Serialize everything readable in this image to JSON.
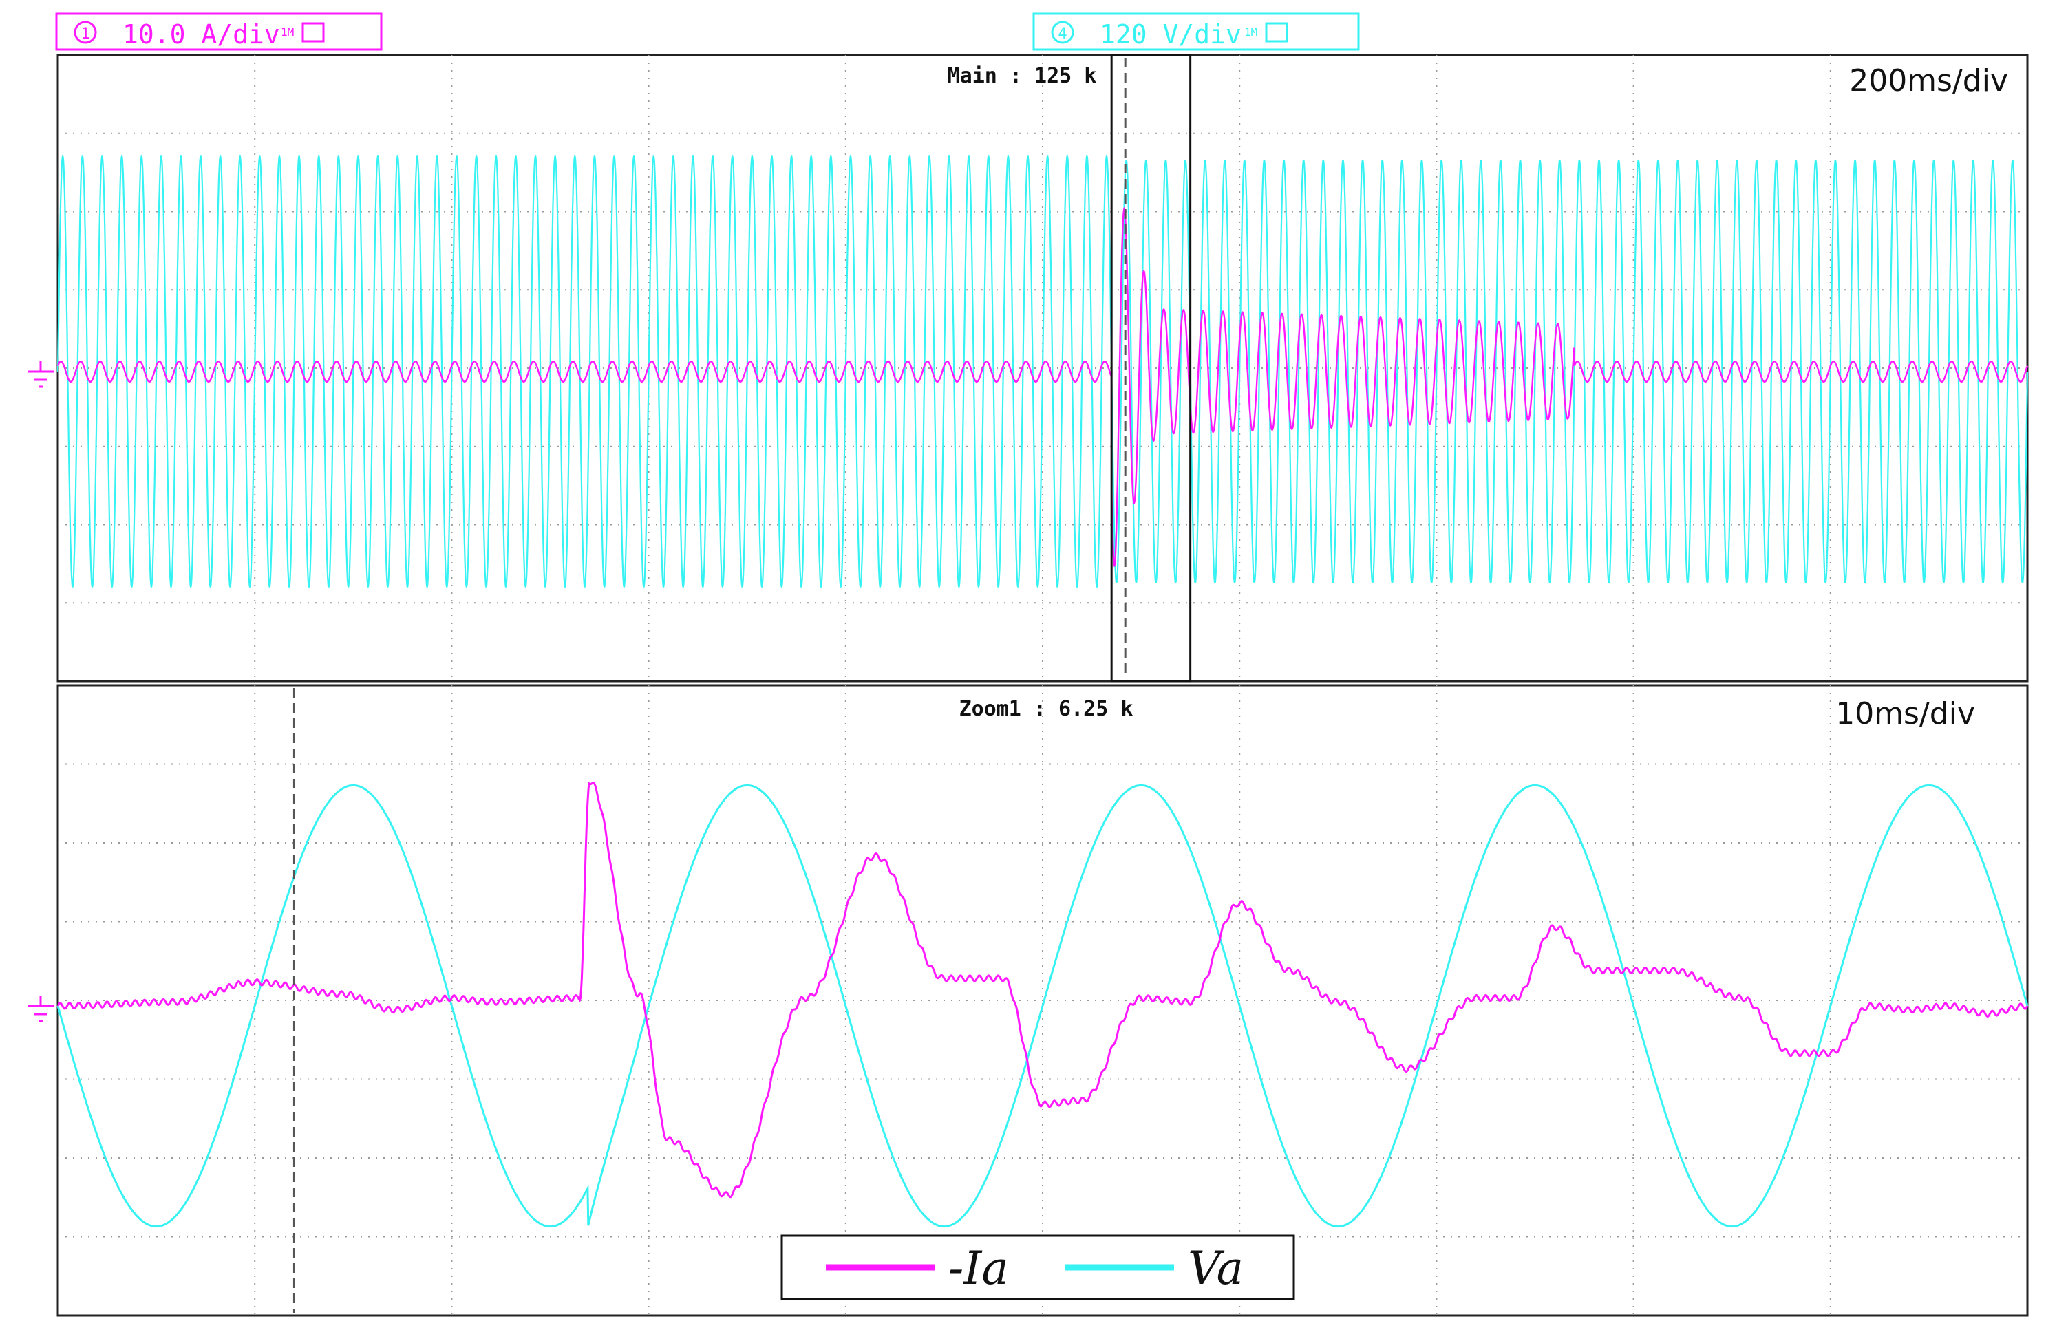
{
  "channels": {
    "ch1": {
      "number": "1",
      "scale_text": "10.0 A/div",
      "badge": "1M",
      "color": "#ff19ff"
    },
    "ch4": {
      "number": "4",
      "scale_text": "120 V/div",
      "badge": "1M",
      "color": "#36f2f2"
    }
  },
  "main_panel": {
    "label": "Main : 125 k",
    "timebase": "200ms/div"
  },
  "zoom_panel": {
    "label": "Zoom1 : 6.25 k",
    "timebase": "10ms/div"
  },
  "colors": {
    "current": "#ff19ff",
    "voltage": "#36f2f2",
    "grid": "#9a9a9a",
    "frame": "#222222"
  },
  "chart_data": [
    {
      "type": "line",
      "panel": "main",
      "title": "",
      "xlabel": "",
      "ylabel": "",
      "x_unit": "ms",
      "x_range": [
        0,
        2000
      ],
      "grid_divisions": {
        "x": 10,
        "y": 8
      },
      "window_marker_ms": [
        1070,
        1150
      ],
      "series": [
        {
          "name": "Va",
          "frequency_hz": 50,
          "amplitude_div": 2.75,
          "amplitude_after_event_div": 2.7,
          "event_ms": 1070
        },
        {
          "name": "-Ia",
          "frequency_hz": 50,
          "pre_event_amplitude_div": 0.13,
          "event_ms": 1070,
          "event_peak_div": 2.6,
          "post_event_amplitude_div": 0.8,
          "recovery_end_ms": 1540,
          "steady_amplitude_div": 0.13
        }
      ]
    },
    {
      "type": "line",
      "panel": "zoom",
      "title": "",
      "xlabel": "",
      "ylabel": "",
      "x_unit": "ms",
      "x_range": [
        0,
        100
      ],
      "grid_divisions": {
        "x": 10,
        "y": 8
      },
      "trigger_cursor_ms": 12,
      "series": [
        {
          "name": "Va",
          "frequency_hz": 50,
          "amplitude_div": 2.8,
          "x": [
            0,
            5,
            12.5,
            25,
            27,
            32.5,
            42,
            52.5,
            62,
            72.5,
            82,
            92.5,
            100
          ],
          "y": [
            0,
            -2.7,
            2.8,
            -2.7,
            -1.6,
            2.65,
            -2.6,
            2.65,
            -2.6,
            2.65,
            -2.6,
            2.8,
            0
          ]
        },
        {
          "name": "-Ia",
          "x": [
            0,
            6,
            10,
            14.5,
            17,
            20,
            22,
            26.5,
            27,
            29.5,
            31,
            34,
            38,
            41.5,
            45,
            48,
            50,
            52,
            55,
            57.5,
            60,
            62.5,
            65,
            68.5,
            72,
            74,
            76,
            78,
            82,
            85.5,
            88,
            90,
            92,
            94,
            96,
            98,
            100
          ],
          "y": [
            0,
            0.05,
            0.3,
            0.15,
            -0.05,
            0.1,
            0.05,
            0.1,
            2.85,
            0.15,
            -1.7,
            -2.4,
            0.1,
            1.9,
            0.35,
            0.35,
            -1.25,
            -1.2,
            0.1,
            0.05,
            1.3,
            0.45,
            0.05,
            -0.8,
            0.1,
            0.1,
            1.0,
            0.45,
            0.45,
            0.1,
            -0.6,
            -0.6,
            0.0,
            -0.05,
            0.0,
            -0.1,
            0.0
          ]
        }
      ],
      "legend": {
        "position": "bottom-center",
        "entries": [
          "-Ia",
          "Va"
        ]
      }
    }
  ]
}
